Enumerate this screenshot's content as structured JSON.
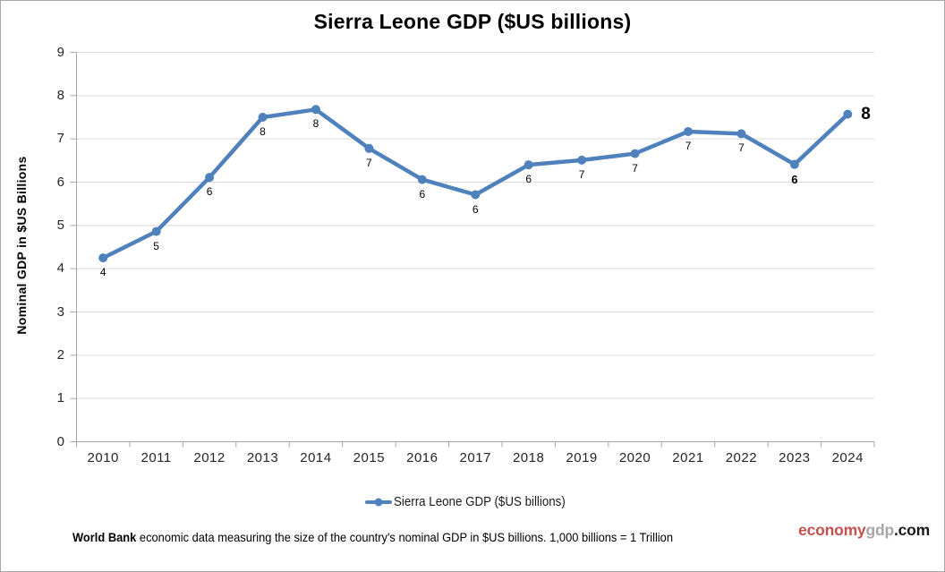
{
  "title": "Sierra Leone GDP ($US billions)",
  "y_axis_title": "Nominal GDP in $US Billions",
  "legend_label": "Sierra Leone GDP ($US billions)",
  "footer": {
    "lead": "World Bank",
    "text": " economic data  measuring the size of the country's nominal GDP in $US billions. 1,000 billions = 1 Trillion"
  },
  "watermark": {
    "primary": "economy",
    "secondary": "gdp",
    "tld": ".com",
    "primary_color": "#C4514D",
    "secondary_color": "#A6A6A6",
    "tld_color": "#1A1A1A"
  },
  "chart_data": {
    "type": "line",
    "title": "Sierra Leone GDP ($US billions)",
    "xlabel": "",
    "ylabel": "Nominal GDP in $US Billions",
    "ylim": [
      0,
      9
    ],
    "ytick_step": 1,
    "grid": true,
    "legend_position": "bottom",
    "categories": [
      "2010",
      "2011",
      "2012",
      "2013",
      "2014",
      "2015",
      "2016",
      "2017",
      "2018",
      "2019",
      "2020",
      "2021",
      "2022",
      "2023",
      "2024"
    ],
    "series": [
      {
        "name": "Sierra Leone GDP ($US billions)",
        "color": "#4F81BD",
        "values": [
          4.25,
          4.86,
          6.11,
          7.5,
          7.68,
          6.78,
          6.06,
          5.71,
          6.4,
          6.51,
          6.66,
          7.17,
          7.12,
          6.41,
          7.57
        ],
        "point_labels": [
          "4",
          "5",
          "6",
          "8",
          "8",
          "7",
          "6",
          "6",
          "6",
          "7",
          "7",
          "7",
          "7",
          "6",
          "8"
        ],
        "label_styles": [
          "normal",
          "normal",
          "normal",
          "normal",
          "normal",
          "normal",
          "normal",
          "normal",
          "normal",
          "normal",
          "normal",
          "normal",
          "normal",
          "bold",
          "bold-large"
        ],
        "label_positions": [
          "below",
          "below",
          "below",
          "below",
          "below",
          "below",
          "below",
          "below",
          "below",
          "below",
          "below",
          "below",
          "below",
          "below",
          "right"
        ]
      }
    ],
    "colors": {
      "gridline": "#D9D9D9",
      "axis": "#A6A6A6",
      "tick_label": "#262626",
      "data_label": "#000000"
    }
  }
}
